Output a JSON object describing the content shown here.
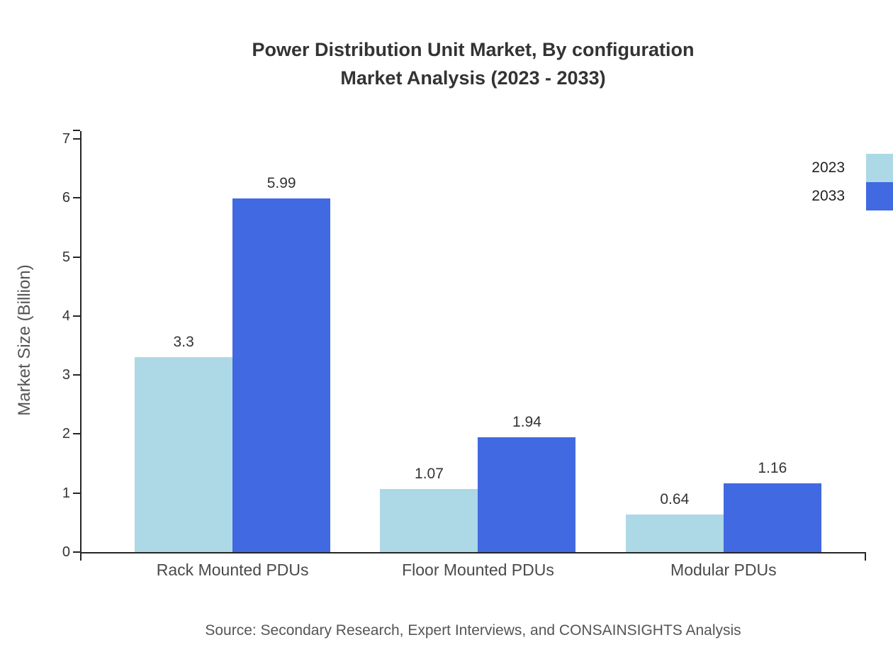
{
  "title": {
    "line1": "Power Distribution Unit Market, By configuration",
    "line2": "Market Analysis (2023 - 2033)"
  },
  "y_axis_title": "Market Size (Billion)",
  "source_note": "Source: Secondary Research, Expert Interviews, and CONSAINSIGHTS Analysis",
  "chart_data": {
    "type": "bar",
    "title": "Power Distribution Unit Market, By configuration Market Analysis (2023 - 2033)",
    "categories": [
      "Rack Mounted PDUs",
      "Floor Mounted PDUs",
      "Modular PDUs"
    ],
    "series": [
      {
        "name": "2023",
        "color": "#ADD8E6",
        "values": [
          3.3,
          1.07,
          0.64
        ]
      },
      {
        "name": "2033",
        "color": "#4169E1",
        "values": [
          5.99,
          1.94,
          1.16
        ]
      }
    ],
    "xlabel": "",
    "ylabel": "Market Size (Billion)",
    "ylim": [
      0,
      7
    ],
    "yticks": [
      0,
      1,
      2,
      3,
      4,
      5,
      6,
      7
    ],
    "grid": false,
    "legend_position": "top-right"
  }
}
